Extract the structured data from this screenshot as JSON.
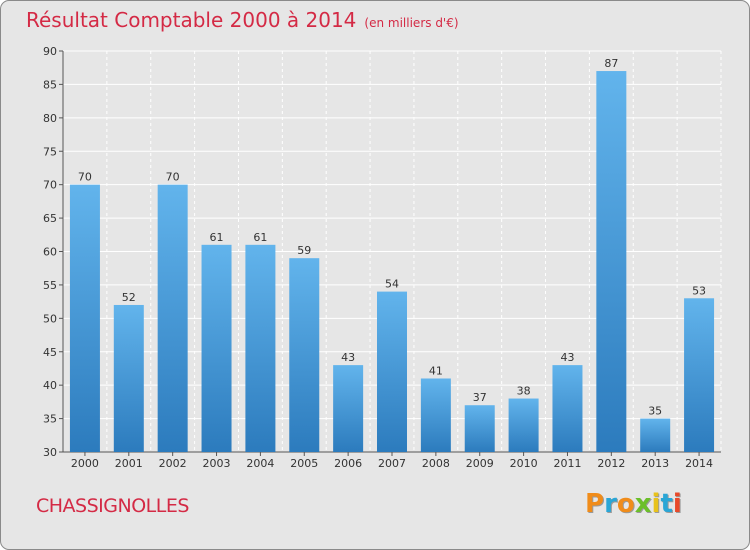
{
  "header": {
    "title": "Résultat Comptable 2000 à 2014",
    "unit": "(en milliers d'€)"
  },
  "commune": "CHASSIGNOLLES",
  "logo": {
    "text": "Proxiti",
    "letters": [
      {
        "char": "P",
        "color": "#f08c1a"
      },
      {
        "char": "r",
        "color": "#2aa6d6"
      },
      {
        "char": "o",
        "color": "#f08c1a"
      },
      {
        "char": "x",
        "color": "#6cbf2a"
      },
      {
        "char": "i",
        "color": "#e8c21c"
      },
      {
        "char": "t",
        "color": "#2aa6d6"
      },
      {
        "char": "i",
        "color": "#e84a2a"
      }
    ]
  },
  "colors": {
    "title": "#d42a45",
    "bar_light": "#5fb0e8",
    "bar_dark": "#2f7fc0",
    "grid": "#ffffff"
  },
  "chart_data": {
    "type": "bar",
    "title": "Résultat Comptable 2000 à 2014 (en milliers d'€)",
    "xlabel": "",
    "ylabel": "",
    "categories": [
      "2000",
      "2001",
      "2002",
      "2003",
      "2004",
      "2005",
      "2006",
      "2007",
      "2008",
      "2009",
      "2010",
      "2011",
      "2012",
      "2013",
      "2014"
    ],
    "values": [
      70,
      52,
      70,
      61,
      61,
      59,
      43,
      54,
      41,
      37,
      38,
      43,
      87,
      35,
      53
    ],
    "ylim": [
      30,
      90
    ],
    "yticks": [
      30,
      35,
      40,
      45,
      50,
      55,
      60,
      65,
      70,
      75,
      80,
      85,
      90
    ],
    "grid": true
  }
}
